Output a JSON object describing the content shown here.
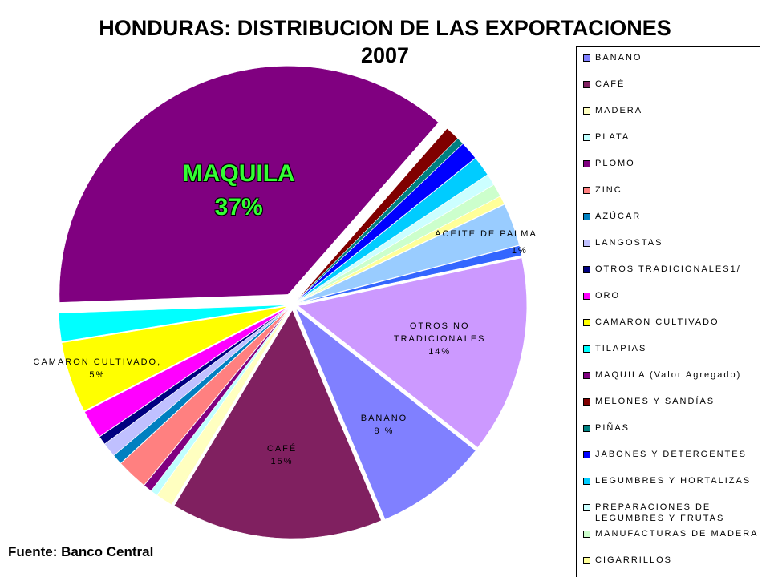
{
  "chart_data": {
    "type": "pie",
    "title": "HONDURAS: DISTRIBUCION DE LAS EXPORTACIONES",
    "subtitle": "2007",
    "source": "Fuente: Banco Central",
    "categories": [
      "BANANO",
      "CAFÉ",
      "MADERA",
      "PLATA",
      "PLOMO",
      "ZINC",
      "AZÚCAR",
      "LANGOSTAS",
      "OTROS TRADICIONALES1/",
      "ORO",
      "CAMARON CULTIVADO",
      "TILAPIAS",
      "MAQUILA (Valor Agregado)",
      "MELONES Y SANDÍAS",
      "PIÑAS",
      "JABONES Y DETERGENTES",
      "LEGUMBRES Y HORTALIZAS",
      "PREPARACIONES DE LEGUMBRES Y FRUTAS",
      "MANUFACTURAS DE MADERA",
      "CIGARRILLOS",
      null,
      null,
      null
    ],
    "values": [
      8,
      15,
      1.2,
      0.5,
      0.6,
      2.2,
      0.7,
      1,
      0.6,
      2,
      5,
      2,
      37,
      1,
      0.5,
      1.3,
      1.4,
      0.8,
      0.9,
      0.6,
      3,
      0.7,
      14
    ],
    "slice_labels": [
      "BANANO",
      "CAFÉ",
      null,
      null,
      null,
      null,
      null,
      null,
      null,
      null,
      "CAMARON CULTIVADO,",
      null,
      "MAQUILA",
      null,
      null,
      null,
      null,
      null,
      null,
      null,
      "ACEITE DE PALMA",
      null,
      "OTROS NO TRADICIONALES"
    ],
    "value_labels": [
      "8 %",
      "15%",
      null,
      null,
      null,
      null,
      null,
      null,
      null,
      null,
      "5%",
      null,
      "37%",
      null,
      null,
      null,
      null,
      null,
      null,
      null,
      null,
      "1%",
      "14%"
    ],
    "colors": [
      "#8080ff",
      "#802060",
      "#ffffc0",
      "#c0ffff",
      "#800080",
      "#ff8080",
      "#0080c0",
      "#c0c0ff",
      "#000080",
      "#ff00ff",
      "#ffff00",
      "#00ffff",
      "#800080",
      "#800000",
      "#008080",
      "#0000ff",
      "#00ccff",
      "#ccffff",
      "#ccffcc",
      "#ffff99",
      "#99ccff",
      "#3366ff",
      "#cc99ff"
    ],
    "legend": "right"
  }
}
